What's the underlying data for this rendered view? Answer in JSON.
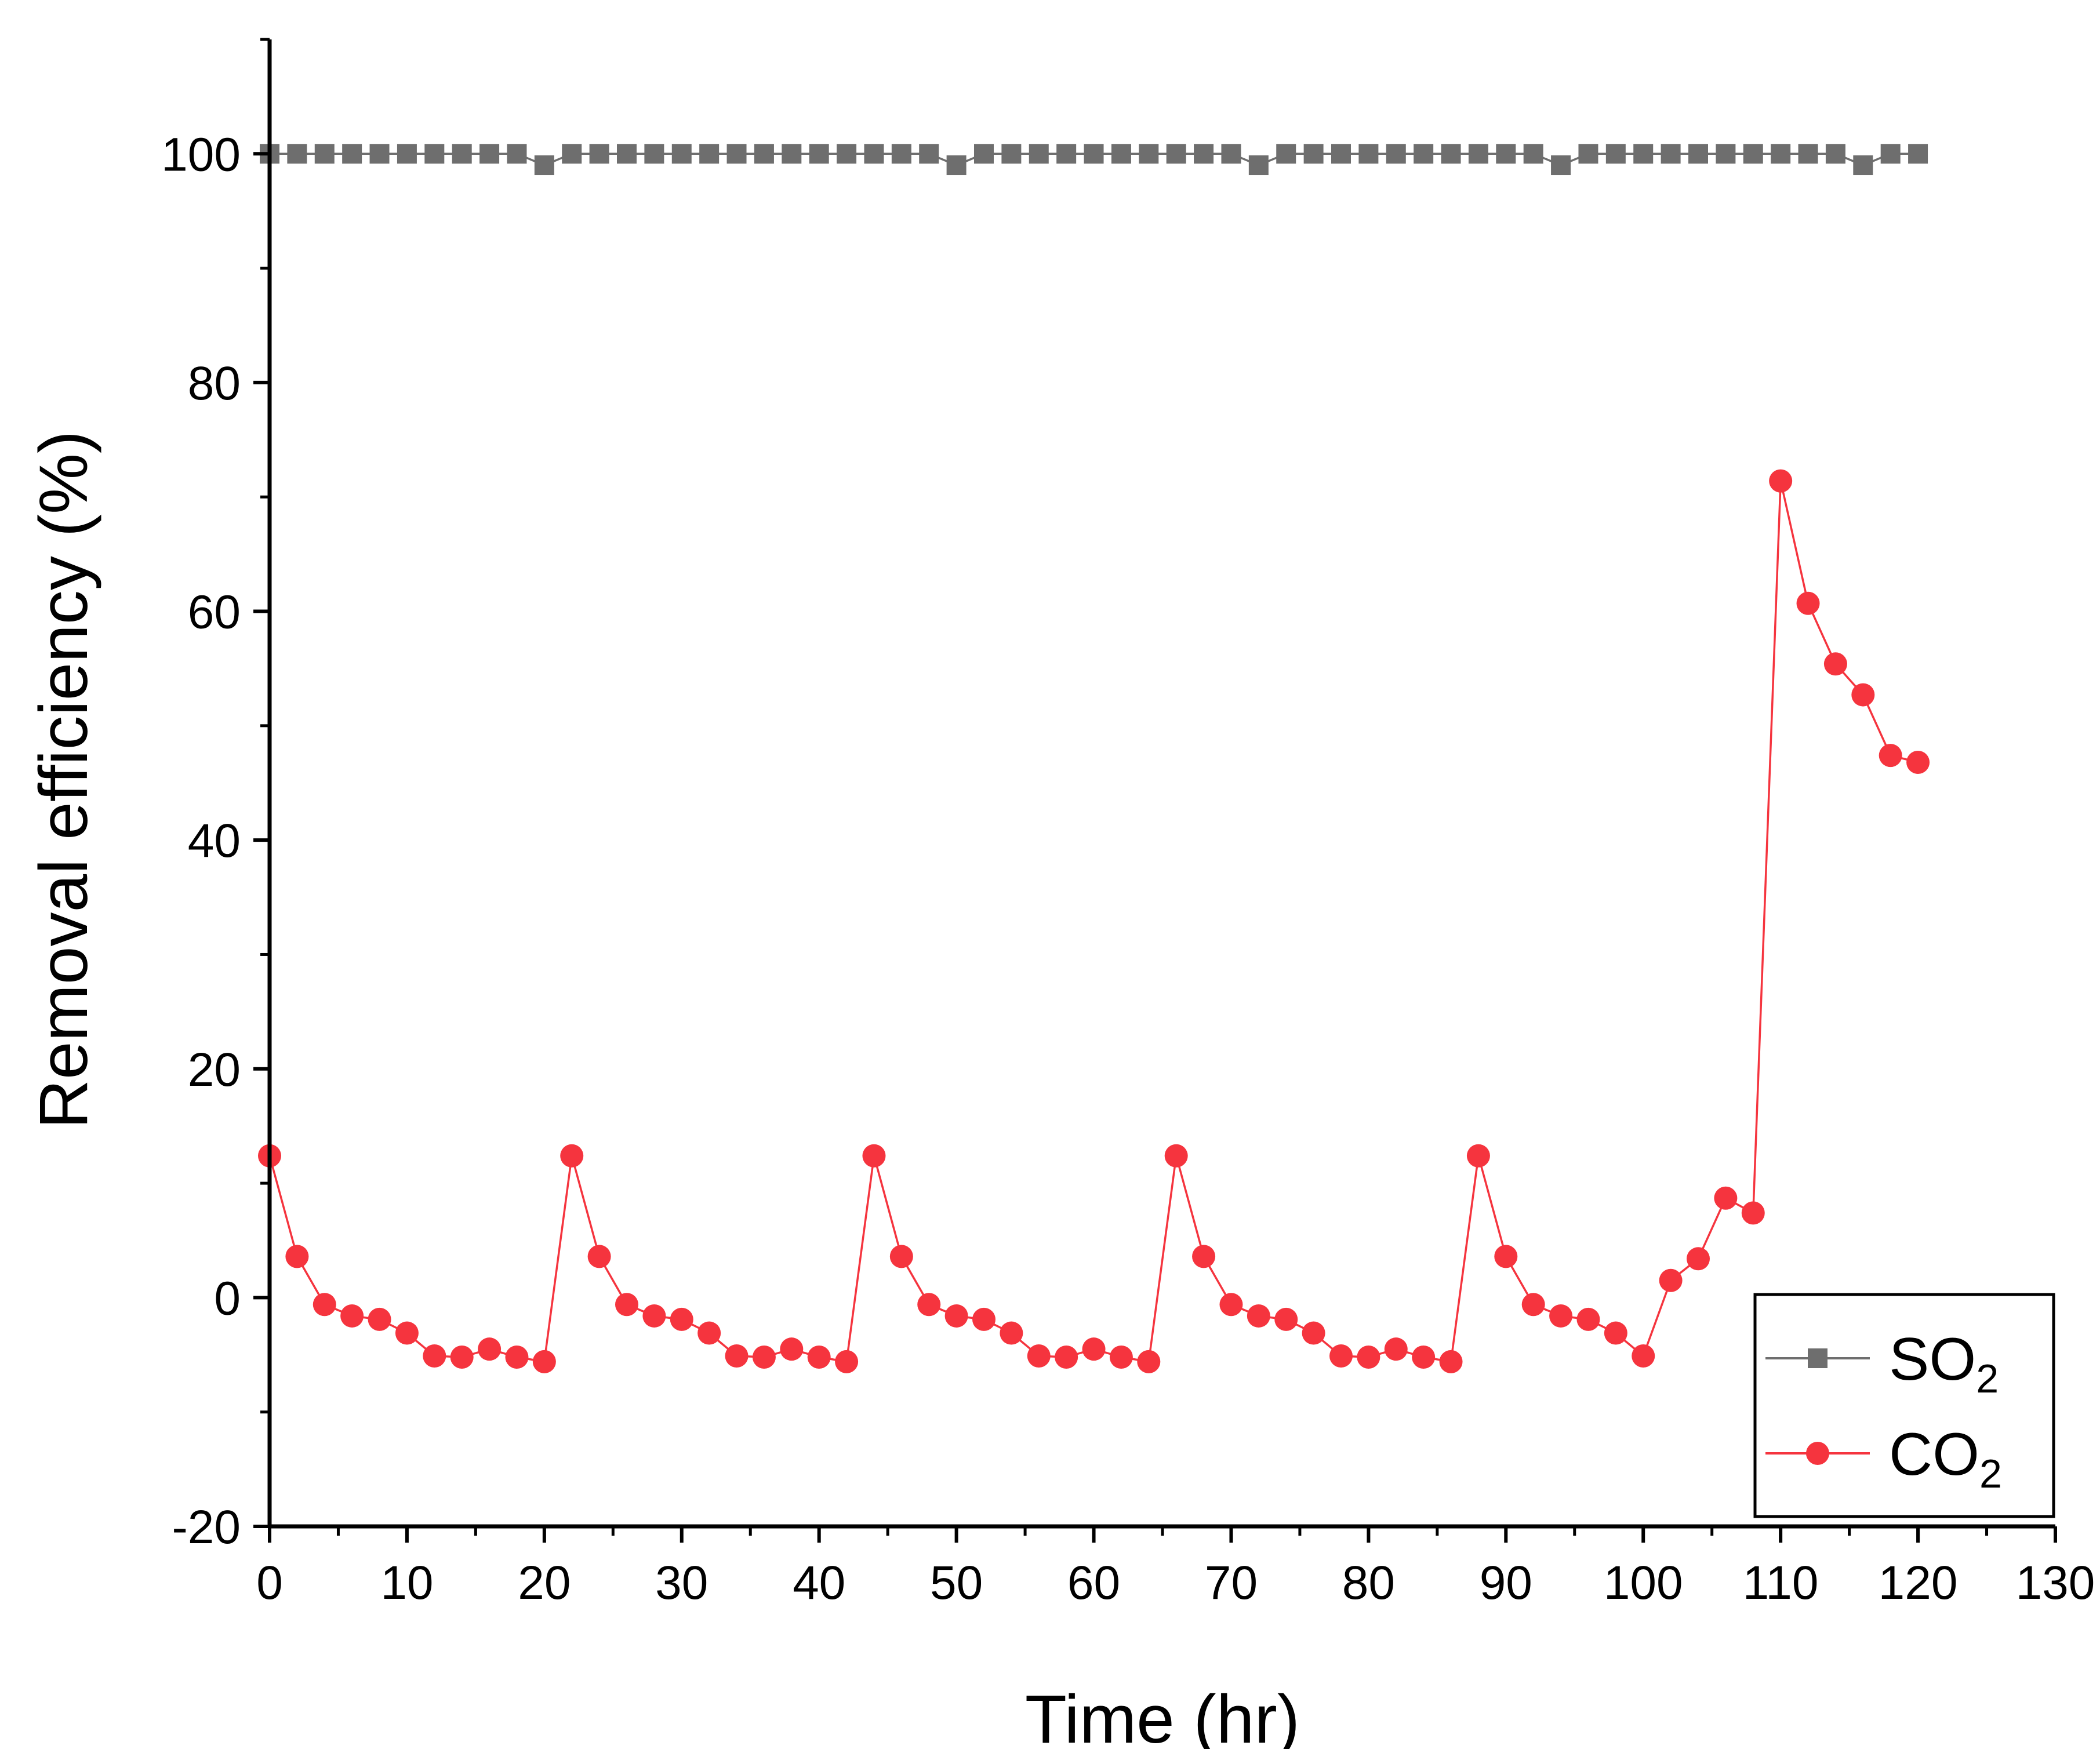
{
  "chart_data": {
    "type": "line",
    "title": "",
    "xlabel": "Time (hr)",
    "ylabel": "Removal efficiency (%)",
    "xlim": [
      0,
      130
    ],
    "ylim": [
      -20,
      110
    ],
    "x_ticks": [
      0,
      10,
      20,
      30,
      40,
      50,
      60,
      70,
      80,
      90,
      100,
      110,
      120,
      130
    ],
    "y_ticks": [
      -20,
      0,
      20,
      40,
      60,
      80,
      100
    ],
    "x_tick_labels": [
      "0",
      "10",
      "20",
      "30",
      "40",
      "50",
      "60",
      "70",
      "80",
      "90",
      "100",
      "110",
      "120",
      "130"
    ],
    "y_tick_labels": [
      "-20",
      "0",
      "20",
      "40",
      "60",
      "80",
      "100"
    ],
    "x": [
      0,
      2,
      4,
      6,
      8,
      10,
      12,
      14,
      16,
      18,
      20,
      22,
      24,
      26,
      28,
      30,
      32,
      34,
      36,
      38,
      40,
      42,
      44,
      46,
      48,
      50,
      52,
      54,
      56,
      58,
      60,
      62,
      64,
      66,
      68,
      70,
      72,
      74,
      76,
      78,
      80,
      82,
      84,
      86,
      88,
      90,
      92,
      94,
      96,
      98,
      100,
      102,
      104,
      106,
      108,
      110,
      112,
      114,
      116,
      118,
      120
    ],
    "series": [
      {
        "name": "SO2",
        "label_main": "SO",
        "label_sub": "2",
        "color": "#6e6e6e",
        "marker": "square",
        "values": [
          100,
          100,
          100,
          100,
          100,
          100,
          100,
          100,
          100,
          100,
          99,
          100,
          100,
          100,
          100,
          100,
          100,
          100,
          100,
          100,
          100,
          100,
          100,
          100,
          100,
          99,
          100,
          100,
          100,
          100,
          100,
          100,
          100,
          100,
          100,
          100,
          99,
          100,
          100,
          100,
          100,
          100,
          100,
          100,
          100,
          100,
          100,
          99,
          100,
          100,
          100,
          100,
          100,
          100,
          100,
          100,
          100,
          100,
          99,
          100,
          100
        ]
      },
      {
        "name": "CO2",
        "label_main": "CO",
        "label_sub": "2",
        "color": "#f5343e",
        "marker": "circle",
        "values": [
          12.4,
          3.6,
          -0.6,
          -1.6,
          -1.9,
          -3.1,
          -5.1,
          -5.2,
          -4.5,
          -5.2,
          -5.6,
          12.4,
          3.6,
          -0.6,
          -1.6,
          -1.9,
          -3.1,
          -5.1,
          -5.2,
          -4.5,
          -5.2,
          -5.6,
          12.4,
          3.6,
          -0.6,
          -1.6,
          -1.9,
          -3.1,
          -5.1,
          -5.2,
          -4.5,
          -5.2,
          -5.6,
          12.4,
          3.6,
          -0.6,
          -1.6,
          -1.9,
          -3.1,
          -5.1,
          -5.2,
          -4.5,
          -5.2,
          -5.6,
          12.4,
          3.6,
          -0.6,
          -1.6,
          -1.9,
          -3.1,
          -5.1,
          1.5,
          3.4,
          8.7,
          7.4,
          71.4,
          60.7,
          55.4,
          52.7,
          47.4,
          46.8
        ]
      }
    ],
    "legend_position": "bottom-right",
    "grid": false
  }
}
